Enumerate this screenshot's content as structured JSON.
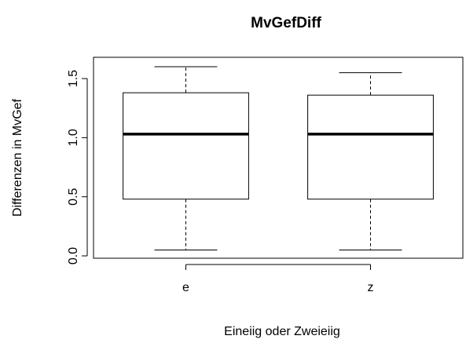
{
  "chart_data": {
    "type": "boxplot",
    "title": "MvGefDiff",
    "xlabel": "Eineiig oder Zweieiig",
    "ylabel": "Differenzen in MvGef",
    "categories": [
      "e",
      "z"
    ],
    "boxes": [
      {
        "category": "e",
        "whisker_low": 0.05,
        "q1": 0.48,
        "median": 1.03,
        "q3": 1.38,
        "whisker_high": 1.6
      },
      {
        "category": "z",
        "whisker_low": 0.05,
        "q1": 0.48,
        "median": 1.03,
        "q3": 1.36,
        "whisker_high": 1.55
      }
    ],
    "y_ticks": [
      0.0,
      0.5,
      1.0,
      1.5
    ],
    "y_tick_labels": [
      "0.0",
      "0.5",
      "1.0",
      "1.5"
    ],
    "ylim": [
      -0.02,
      1.68
    ],
    "grid": false
  }
}
